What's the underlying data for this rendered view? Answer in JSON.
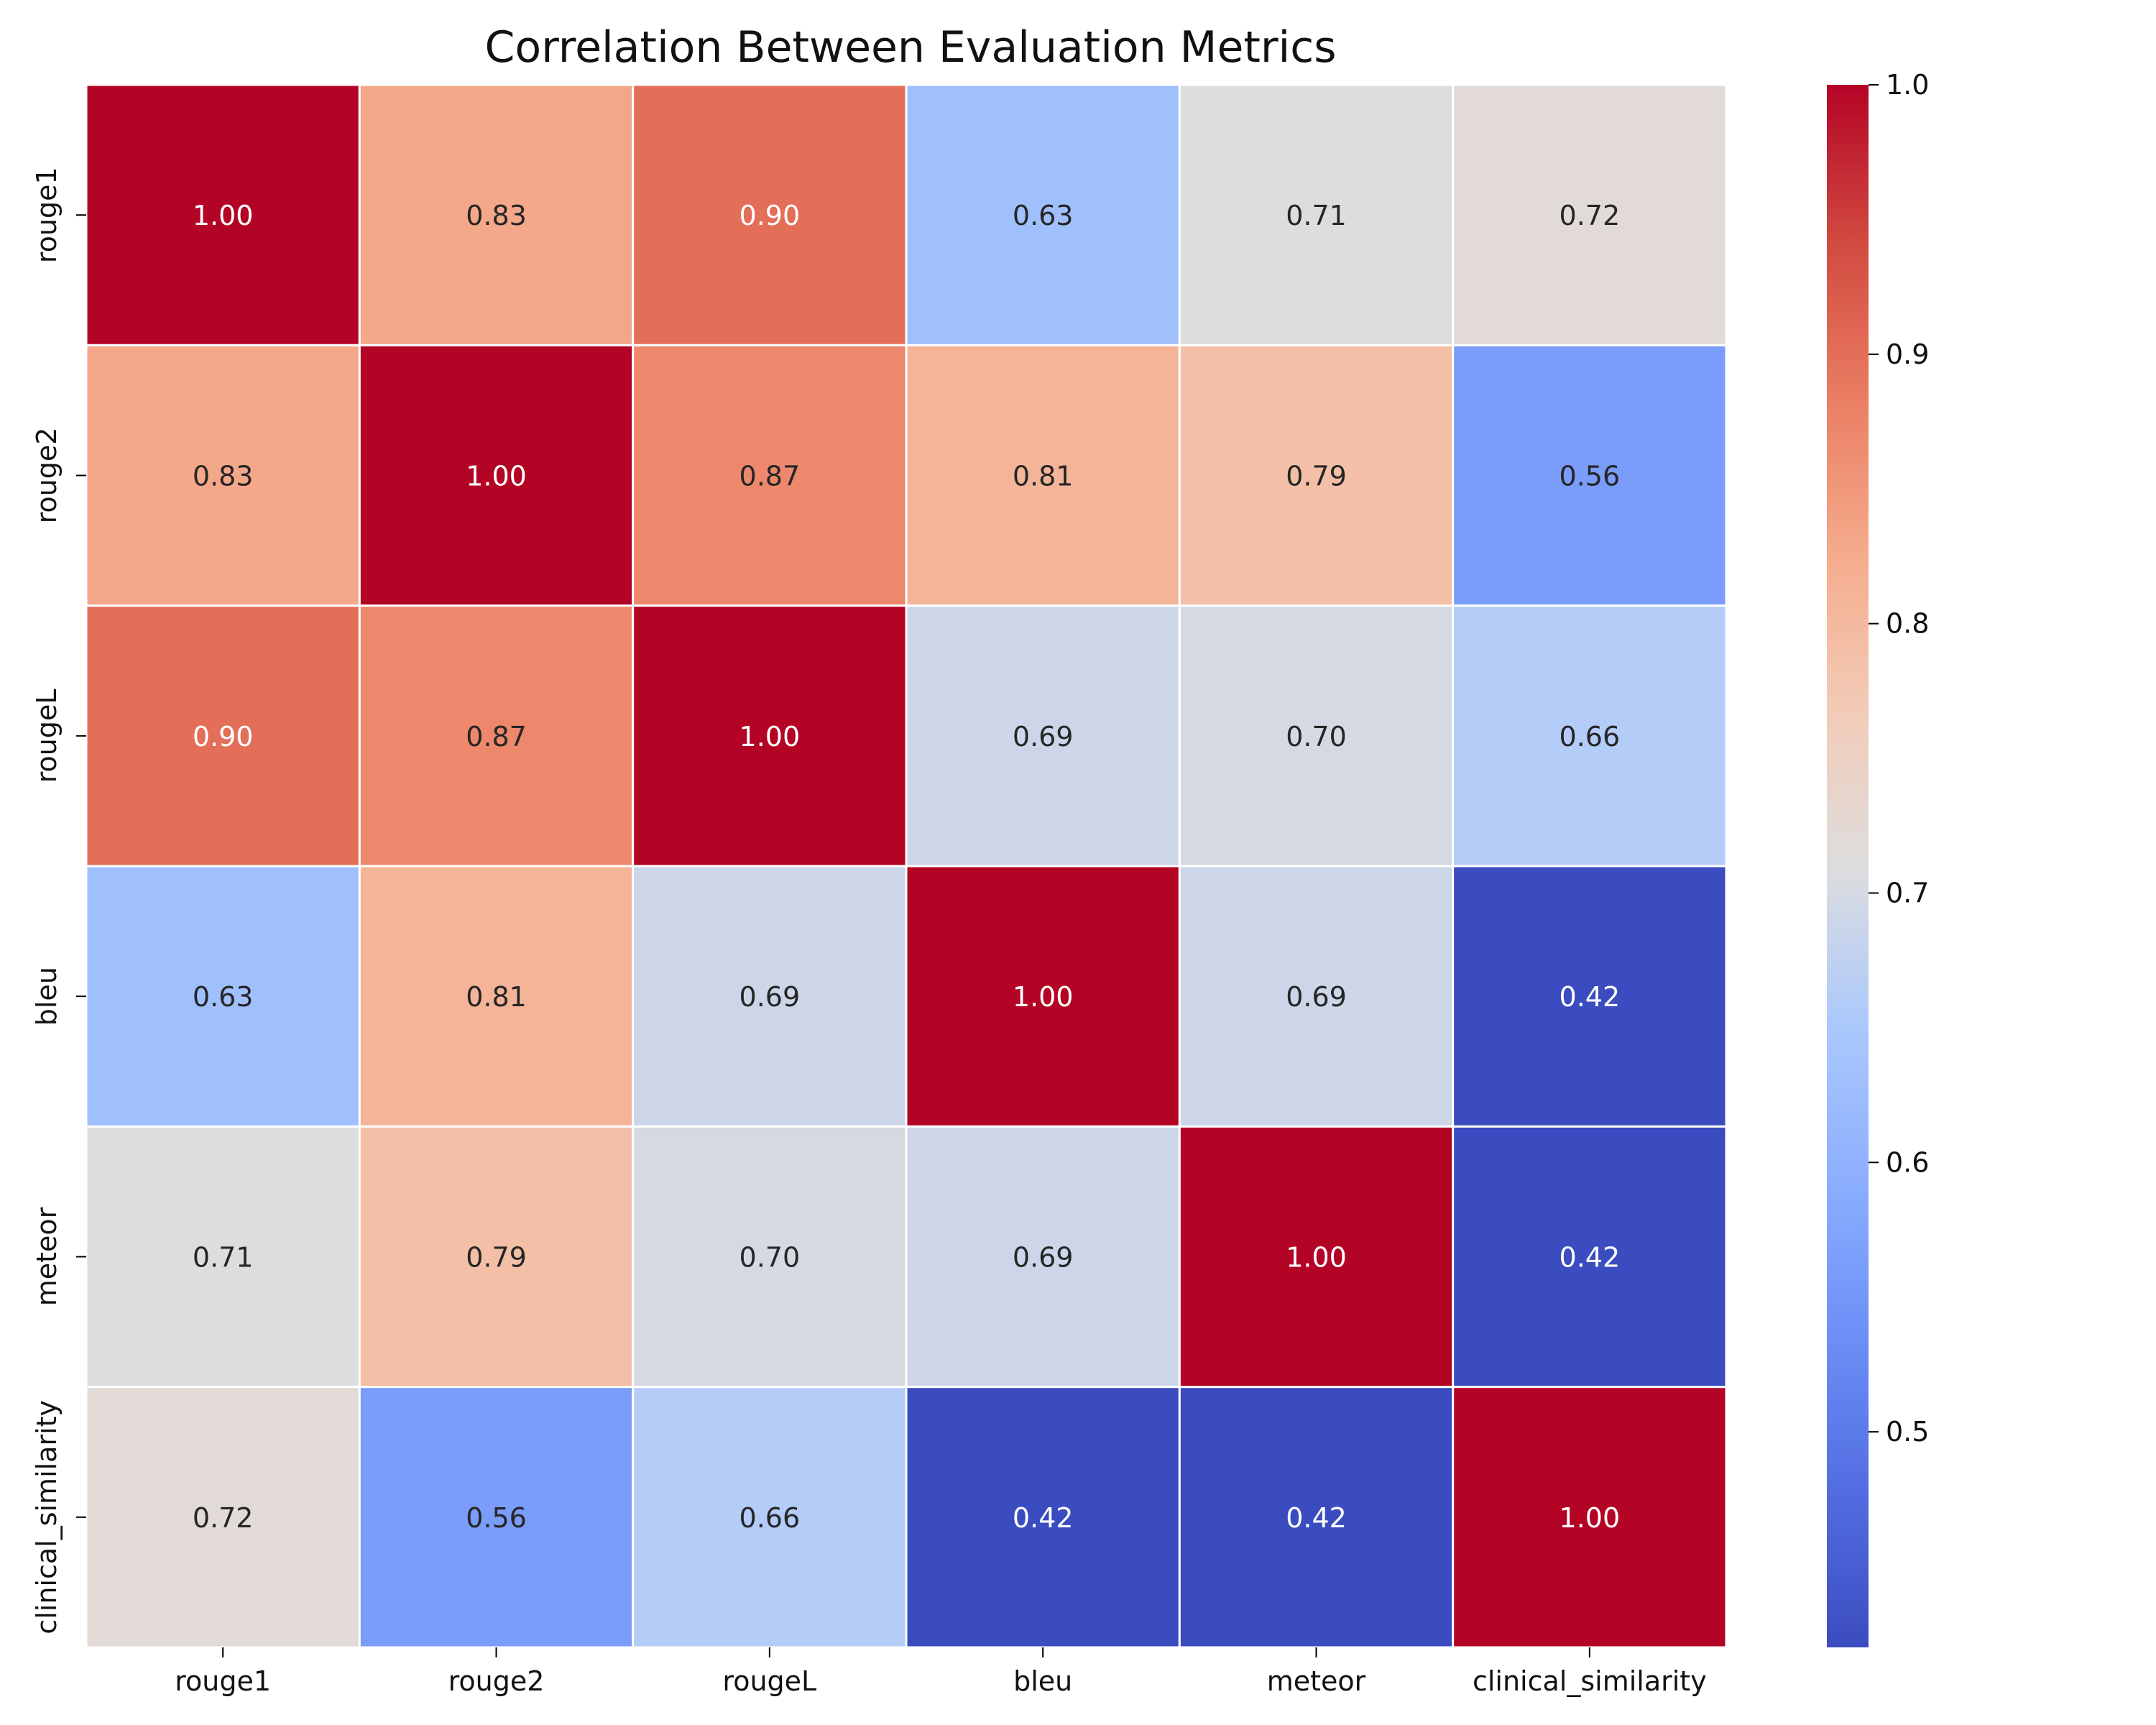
{
  "chart_data": {
    "type": "heatmap",
    "title": "Correlation Between Evaluation Metrics",
    "xlabel": "",
    "ylabel": "",
    "x_categories": [
      "rouge1",
      "rouge2",
      "rougeL",
      "bleu",
      "meteor",
      "clinical_similarity"
    ],
    "y_categories": [
      "rouge1",
      "rouge2",
      "rougeL",
      "bleu",
      "meteor",
      "clinical_similarity"
    ],
    "values": [
      [
        1.0,
        0.83,
        0.9,
        0.63,
        0.71,
        0.72
      ],
      [
        0.83,
        1.0,
        0.87,
        0.81,
        0.79,
        0.56
      ],
      [
        0.9,
        0.87,
        1.0,
        0.69,
        0.7,
        0.66
      ],
      [
        0.63,
        0.81,
        0.69,
        1.0,
        0.69,
        0.42
      ],
      [
        0.71,
        0.79,
        0.7,
        0.69,
        1.0,
        0.42
      ],
      [
        0.72,
        0.56,
        0.66,
        0.42,
        0.42,
        1.0
      ]
    ],
    "value_format": "0.00",
    "colormap": "coolwarm",
    "vmin": 0.42,
    "vmax": 1.0,
    "colorbar_ticks": [
      "0.5",
      "0.6",
      "0.7",
      "0.8",
      "0.9",
      "1.0"
    ],
    "cell_border_color": "#ffffff",
    "legend_placement": "right",
    "grid": false
  }
}
